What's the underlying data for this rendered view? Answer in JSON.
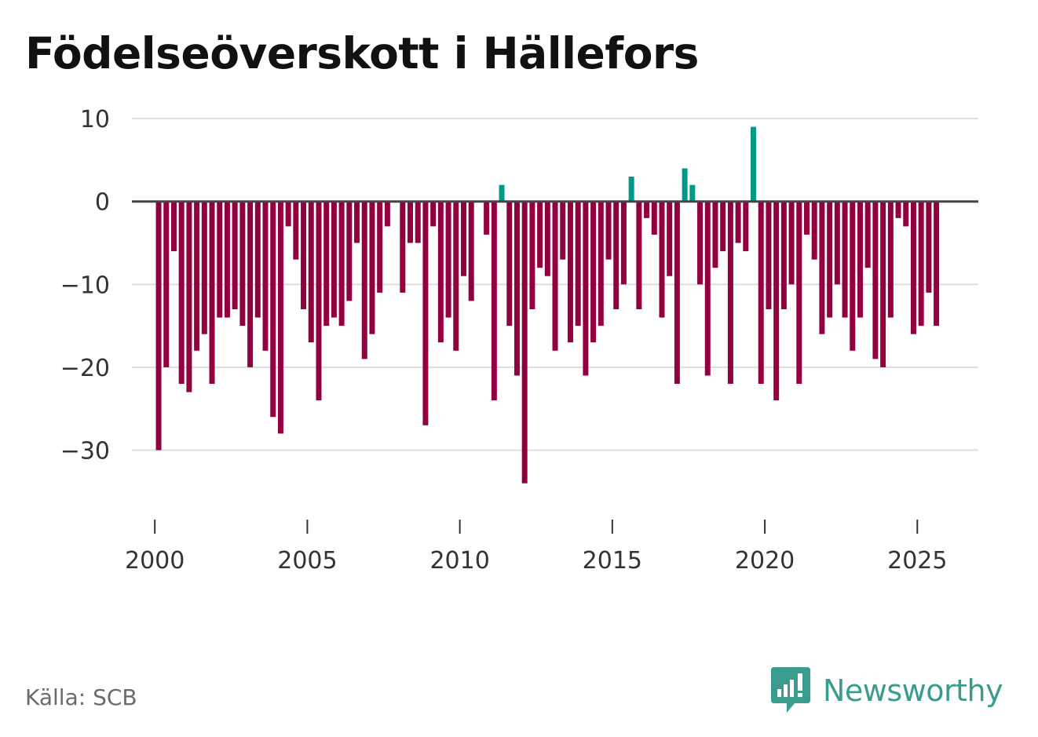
{
  "title": "Födelseöverskott i Hällefors",
  "source": "Källa: SCB",
  "brand": "Newsworthy",
  "colors": {
    "positive": "#00998a",
    "negative": "#930040",
    "grid": "#dddddd",
    "baseline": "#444444",
    "text": "#333333"
  },
  "chart_data": {
    "type": "bar",
    "title": "Födelseöverskott i Hällefors",
    "xlabel": "",
    "ylabel": "",
    "ylim": [
      -38,
      12
    ],
    "yticks": [
      10,
      0,
      -10,
      -20,
      -30
    ],
    "ytick_labels": [
      "10",
      "0",
      "−10",
      "−20",
      "−30"
    ],
    "xlim": [
      1999.3,
      2027.0
    ],
    "xticks": [
      2000,
      2005,
      2010,
      2015,
      2020,
      2025
    ],
    "xtick_labels": [
      "2000",
      "2005",
      "2010",
      "2015",
      "2020",
      "2025"
    ],
    "period": "quarter",
    "start": 2000,
    "values": [
      -30,
      -20,
      -6,
      -22,
      -23,
      -18,
      -16,
      -22,
      -14,
      -14,
      -13,
      -15,
      -20,
      -14,
      -18,
      -26,
      -28,
      -3,
      -7,
      -13,
      -17,
      -24,
      -15,
      -14,
      -15,
      -12,
      -5,
      -19,
      -16,
      -11,
      -3,
      0,
      -11,
      -5,
      -5,
      -27,
      -3,
      -17,
      -14,
      -18,
      -9,
      -12,
      0,
      -4,
      -24,
      2,
      -15,
      -21,
      -34,
      -13,
      -8,
      -9,
      -18,
      -7,
      -17,
      -15,
      -21,
      -17,
      -15,
      -7,
      -13,
      -10,
      3,
      -13,
      -2,
      -4,
      -14,
      -9,
      -22,
      4,
      2,
      -10,
      -21,
      -8,
      -6,
      -22,
      -5,
      -6,
      9,
      -22,
      -13,
      -24,
      -13,
      -10,
      -22,
      -4,
      -7,
      -16,
      -14,
      -10,
      -14,
      -18,
      -14,
      -8,
      -19,
      -20,
      -14,
      -2,
      -3,
      -16,
      -15,
      -11,
      -15
    ]
  }
}
